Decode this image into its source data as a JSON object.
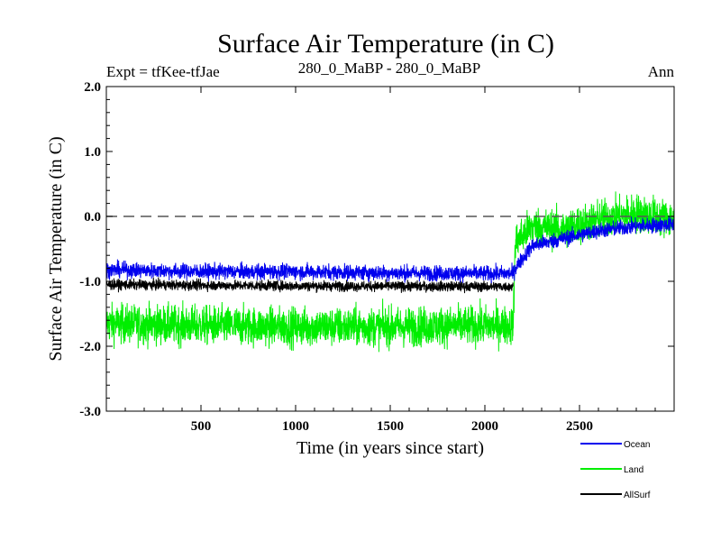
{
  "chart_data": {
    "type": "line",
    "title": "Surface Air Temperature (in C)",
    "subtitle_left": "Expt = tfKee-tfJae",
    "subtitle_center": "280_0_MaBP - 280_0_MaBP",
    "subtitle_right": "Ann",
    "xlabel": "Time (in years since start)",
    "ylabel": "Surface Air Temperature (in C)",
    "xlim": [
      0,
      3000
    ],
    "ylim": [
      -3.0,
      2.0
    ],
    "x_ticks": [
      500,
      1000,
      1500,
      2000,
      2500
    ],
    "x_tick_labels": [
      "500",
      "1000",
      "1500",
      "2000",
      "2500"
    ],
    "y_ticks": [
      -3.0,
      -2.0,
      -1.0,
      0.0,
      1.0,
      2.0
    ],
    "y_tick_labels": [
      "-3.0",
      "-2.0",
      "-1.0",
      "0.0",
      "1.0",
      "2.0"
    ],
    "reference_line": {
      "y": 0.0,
      "style": "dashed"
    },
    "legend_position": "bottom-right",
    "series": [
      {
        "name": "Land",
        "color": "#00ee00",
        "knots": [
          [
            0,
            -1.65
          ],
          [
            500,
            -1.68
          ],
          [
            1000,
            -1.7
          ],
          [
            1500,
            -1.7
          ],
          [
            2000,
            -1.68
          ],
          [
            2150,
            -1.68
          ],
          [
            2160,
            -0.4
          ],
          [
            2250,
            -0.15
          ],
          [
            2400,
            -0.2
          ],
          [
            2600,
            -0.05
          ],
          [
            2800,
            0.05
          ],
          [
            3000,
            -0.05
          ]
        ],
        "noise_amplitude": 0.3
      },
      {
        "name": "AllSurf",
        "color": "#000000",
        "knots": [
          [
            0,
            -1.05
          ],
          [
            1000,
            -1.07
          ],
          [
            2000,
            -1.08
          ],
          [
            2150,
            -1.08
          ]
        ],
        "noise_amplitude": 0.08
      },
      {
        "name": "Ocean",
        "color": "#0000ee",
        "knots": [
          [
            0,
            -0.82
          ],
          [
            500,
            -0.85
          ],
          [
            1000,
            -0.85
          ],
          [
            1500,
            -0.87
          ],
          [
            2000,
            -0.88
          ],
          [
            2150,
            -0.88
          ],
          [
            2160,
            -0.8
          ],
          [
            2250,
            -0.45
          ],
          [
            2400,
            -0.35
          ],
          [
            2600,
            -0.22
          ],
          [
            2800,
            -0.15
          ],
          [
            3000,
            -0.12
          ]
        ],
        "noise_amplitude": 0.12
      }
    ]
  }
}
